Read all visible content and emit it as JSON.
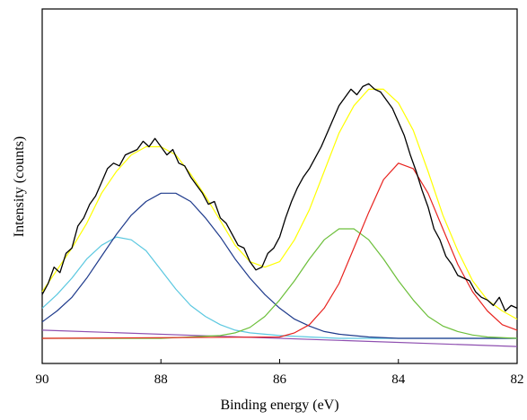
{
  "chart_data": {
    "type": "line",
    "title": "",
    "xlabel": "Binding energy (eV)",
    "ylabel": "Intensity (counts)",
    "x_reversed": true,
    "xlim": [
      82,
      90
    ],
    "ylim": [
      0,
      100
    ],
    "x_ticks": [
      90,
      88,
      86,
      84,
      82
    ],
    "y_ticks_shown": false,
    "grid": false,
    "legend": "none",
    "series": [
      {
        "color": "#000000",
        "style": "noisy raw data",
        "x": [
          90.0,
          89.9,
          89.8,
          89.7,
          89.6,
          89.5,
          89.4,
          89.3,
          89.2,
          89.1,
          89.0,
          88.9,
          88.8,
          88.7,
          88.6,
          88.5,
          88.4,
          88.3,
          88.2,
          88.1,
          88.0,
          87.9,
          87.8,
          87.7,
          87.6,
          87.5,
          87.4,
          87.3,
          87.2,
          87.1,
          87.0,
          86.9,
          86.8,
          86.7,
          86.6,
          86.5,
          86.4,
          86.3,
          86.2,
          86.1,
          86.0,
          85.9,
          85.8,
          85.7,
          85.6,
          85.5,
          85.4,
          85.3,
          85.2,
          85.1,
          85.0,
          84.9,
          84.8,
          84.7,
          84.6,
          84.5,
          84.4,
          84.3,
          84.2,
          84.1,
          84.0,
          83.9,
          83.8,
          83.7,
          83.6,
          83.5,
          83.4,
          83.3,
          83.2,
          83.1,
          83.0,
          82.9,
          82.8,
          82.7,
          82.6,
          82.5,
          82.4,
          82.3,
          82.2,
          82.1,
          82.0
        ],
        "y": [
          16,
          20,
          26,
          24,
          31,
          33,
          41,
          44,
          49,
          52,
          57,
          62,
          64,
          63,
          67,
          68,
          69,
          72,
          70,
          73,
          70,
          67,
          69,
          64,
          63,
          59,
          56,
          53,
          49,
          50,
          44,
          42,
          38,
          34,
          33,
          28,
          25,
          26,
          31,
          33,
          37,
          44,
          50,
          55,
          59,
          62,
          66,
          70,
          75,
          80,
          85,
          88,
          91,
          89,
          92,
          93,
          91,
          90,
          87,
          84,
          79,
          74,
          67,
          61,
          54,
          48,
          40,
          36,
          30,
          27,
          23,
          22,
          21,
          17,
          15,
          14,
          12,
          15,
          10,
          12,
          11
        ]
      },
      {
        "color": "#ffff00",
        "style": "envelope fit",
        "x": [
          90.0,
          89.75,
          89.5,
          89.25,
          89.0,
          88.75,
          88.5,
          88.25,
          88.0,
          87.75,
          87.5,
          87.25,
          87.0,
          86.75,
          86.5,
          86.25,
          86.0,
          85.75,
          85.5,
          85.25,
          85.0,
          84.75,
          84.5,
          84.25,
          84.0,
          83.75,
          83.5,
          83.25,
          83.0,
          82.75,
          82.5,
          82.25,
          82.0
        ],
        "y": [
          17,
          25,
          33,
          42,
          53,
          61,
          67,
          70,
          70,
          67,
          60,
          52,
          43,
          34,
          28,
          26,
          28,
          36,
          47,
          61,
          75,
          85,
          91,
          91,
          86,
          76,
          61,
          45,
          32,
          21,
          14,
          10,
          7
        ]
      },
      {
        "color": "#5bc8e0",
        "style": "component peak",
        "x": [
          90.0,
          89.75,
          89.5,
          89.25,
          89.0,
          88.75,
          88.5,
          88.25,
          88.0,
          87.75,
          87.5,
          87.25,
          87.0,
          86.75,
          86.5,
          86.0,
          85.5,
          85.0,
          84.0,
          83.0,
          82.0
        ],
        "y": [
          11,
          16,
          22,
          29,
          34,
          37,
          36,
          32,
          25,
          18,
          12,
          8,
          5,
          3,
          2,
          1,
          0.5,
          0,
          0,
          0,
          0
        ]
      },
      {
        "color": "#1f3b8c",
        "style": "component peak",
        "x": [
          90.0,
          89.75,
          89.5,
          89.25,
          89.0,
          88.75,
          88.5,
          88.25,
          88.0,
          87.75,
          87.5,
          87.25,
          87.0,
          86.75,
          86.5,
          86.25,
          86.0,
          85.75,
          85.5,
          85.25,
          85.0,
          84.5,
          84.0,
          83.0,
          82.0
        ],
        "y": [
          6,
          10,
          15,
          22,
          30,
          38,
          45,
          50,
          53,
          53,
          50,
          44,
          37,
          29,
          22,
          16,
          11,
          7,
          4.5,
          2.5,
          1.5,
          0.5,
          0,
          0,
          0
        ]
      },
      {
        "color": "#6cbf3a",
        "style": "component peak",
        "x": [
          90.0,
          88.0,
          87.0,
          86.75,
          86.5,
          86.25,
          86.0,
          85.75,
          85.5,
          85.25,
          85.0,
          84.75,
          84.5,
          84.25,
          84.0,
          83.75,
          83.5,
          83.25,
          83.0,
          82.75,
          82.5,
          82.0
        ],
        "y": [
          0,
          0,
          1,
          2,
          4,
          8,
          14,
          21,
          29,
          36,
          40,
          40,
          36,
          29,
          21,
          14,
          8,
          4.5,
          2.5,
          1.2,
          0.5,
          0
        ]
      },
      {
        "color": "#e8231f",
        "style": "component peak",
        "x": [
          90.0,
          86.0,
          85.75,
          85.5,
          85.25,
          85.0,
          84.75,
          84.5,
          84.25,
          84.0,
          83.75,
          83.5,
          83.25,
          83.0,
          82.75,
          82.5,
          82.25,
          82.0
        ],
        "y": [
          0,
          0.5,
          2,
          5,
          11,
          20,
          33,
          46,
          58,
          64,
          62,
          53,
          40,
          27,
          17,
          10,
          5,
          3
        ]
      },
      {
        "color": "#8e4fb0",
        "style": "baseline",
        "x": [
          90.0,
          82.0
        ],
        "y": [
          3,
          -3
        ]
      }
    ]
  }
}
